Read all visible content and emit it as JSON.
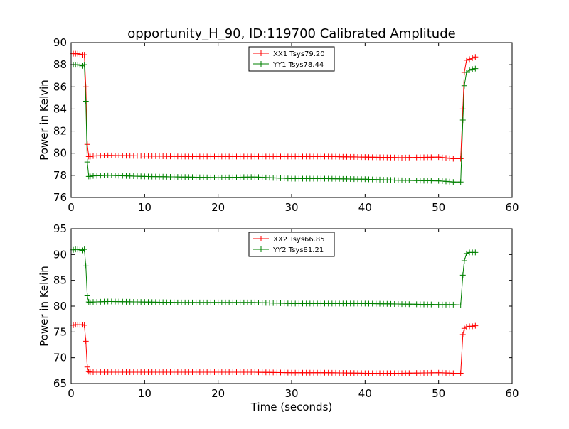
{
  "figure": {
    "title": "opportunity_H_90, ID:119700 Calibrated Amplitude"
  },
  "chart_data": [
    {
      "type": "line",
      "title": "opportunity_H_90, ID:119700 Calibrated Amplitude",
      "xlabel": "",
      "ylabel": "Power in Kelvin",
      "xlim": [
        0,
        60
      ],
      "ylim": [
        76,
        90
      ],
      "xticks": [
        0,
        10,
        20,
        30,
        40,
        50,
        60
      ],
      "yticks": [
        76,
        78,
        80,
        82,
        84,
        86,
        88,
        90
      ],
      "legend": "top-center",
      "grid": false,
      "series": [
        {
          "name": "XX1 Tsys79.20",
          "color": "#ff0000",
          "x": [
            0.3,
            0.6,
            0.9,
            1.2,
            1.5,
            1.8,
            2.0,
            2.2,
            2.4,
            2.6,
            3.0,
            5.0,
            10.0,
            15.0,
            20.0,
            25.0,
            30.0,
            35.0,
            40.0,
            45.0,
            50.0,
            52.0,
            53.0,
            53.3,
            53.5,
            53.8,
            54.2,
            54.6,
            55.0
          ],
          "y": [
            89.0,
            89.0,
            89.0,
            88.95,
            88.9,
            88.9,
            86.0,
            80.8,
            79.7,
            79.7,
            79.75,
            79.8,
            79.75,
            79.7,
            79.7,
            79.7,
            79.7,
            79.7,
            79.65,
            79.6,
            79.65,
            79.5,
            79.5,
            84.0,
            87.3,
            88.4,
            88.5,
            88.6,
            88.7
          ]
        },
        {
          "name": "YY1 Tsys78.44",
          "color": "#008000",
          "x": [
            0.3,
            0.6,
            0.9,
            1.2,
            1.5,
            1.8,
            2.0,
            2.2,
            2.4,
            2.6,
            3.0,
            5.0,
            10.0,
            15.0,
            20.0,
            25.0,
            30.0,
            35.0,
            40.0,
            45.0,
            50.0,
            52.0,
            53.0,
            53.3,
            53.5,
            53.8,
            54.2,
            54.6,
            55.0
          ],
          "y": [
            88.0,
            88.0,
            88.0,
            87.95,
            87.9,
            88.0,
            84.7,
            79.2,
            77.9,
            77.9,
            77.95,
            78.0,
            77.9,
            77.85,
            77.8,
            77.85,
            77.7,
            77.7,
            77.65,
            77.55,
            77.5,
            77.4,
            77.4,
            83.0,
            86.1,
            87.3,
            87.5,
            87.6,
            87.65
          ]
        }
      ]
    },
    {
      "type": "line",
      "title": "",
      "xlabel": "Time (seconds)",
      "ylabel": "Power in Kelvin",
      "xlim": [
        0,
        60
      ],
      "ylim": [
        65,
        95
      ],
      "xticks": [
        0,
        10,
        20,
        30,
        40,
        50,
        60
      ],
      "yticks": [
        65,
        70,
        75,
        80,
        85,
        90,
        95
      ],
      "legend": "top-center",
      "grid": false,
      "series": [
        {
          "name": "XX2 Tsys66.85",
          "color": "#ff0000",
          "x": [
            0.3,
            0.6,
            0.9,
            1.2,
            1.5,
            1.8,
            2.0,
            2.2,
            2.4,
            2.6,
            3.0,
            5.0,
            10.0,
            15.0,
            20.0,
            25.0,
            30.0,
            35.0,
            40.0,
            45.0,
            50.0,
            52.0,
            53.0,
            53.3,
            53.5,
            53.8,
            54.2,
            54.6,
            55.0
          ],
          "y": [
            76.3,
            76.4,
            76.4,
            76.35,
            76.4,
            76.3,
            73.2,
            68.2,
            67.3,
            67.2,
            67.2,
            67.2,
            67.2,
            67.2,
            67.2,
            67.2,
            67.1,
            67.1,
            67.0,
            67.0,
            67.1,
            67.0,
            67.0,
            74.5,
            75.7,
            76.0,
            76.1,
            76.1,
            76.2
          ]
        },
        {
          "name": "YY2 Tsys81.21",
          "color": "#008000",
          "x": [
            0.3,
            0.6,
            0.9,
            1.2,
            1.5,
            1.8,
            2.0,
            2.2,
            2.4,
            2.6,
            3.0,
            5.0,
            10.0,
            15.0,
            20.0,
            25.0,
            30.0,
            35.0,
            40.0,
            45.0,
            50.0,
            52.0,
            53.0,
            53.3,
            53.5,
            53.8,
            54.2,
            54.6,
            55.0
          ],
          "y": [
            90.9,
            91.0,
            91.0,
            90.9,
            90.8,
            91.0,
            87.8,
            82.0,
            80.8,
            80.7,
            80.8,
            80.9,
            80.8,
            80.7,
            80.7,
            80.7,
            80.5,
            80.5,
            80.5,
            80.4,
            80.3,
            80.3,
            80.2,
            86.0,
            88.8,
            90.2,
            90.4,
            90.4,
            90.4
          ]
        }
      ]
    }
  ]
}
